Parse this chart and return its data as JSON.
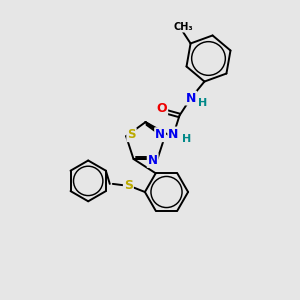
{
  "background_color": "#e6e6e6",
  "atom_colors": {
    "N": "#0000ee",
    "O": "#ee0000",
    "S": "#bbaa00",
    "C": "#000000",
    "H": "#008888"
  },
  "bond_color": "#000000",
  "bond_width": 1.4,
  "fig_w": 3.0,
  "fig_h": 3.0,
  "dpi": 100,
  "xlim": [
    0,
    10
  ],
  "ylim": [
    0,
    10
  ]
}
